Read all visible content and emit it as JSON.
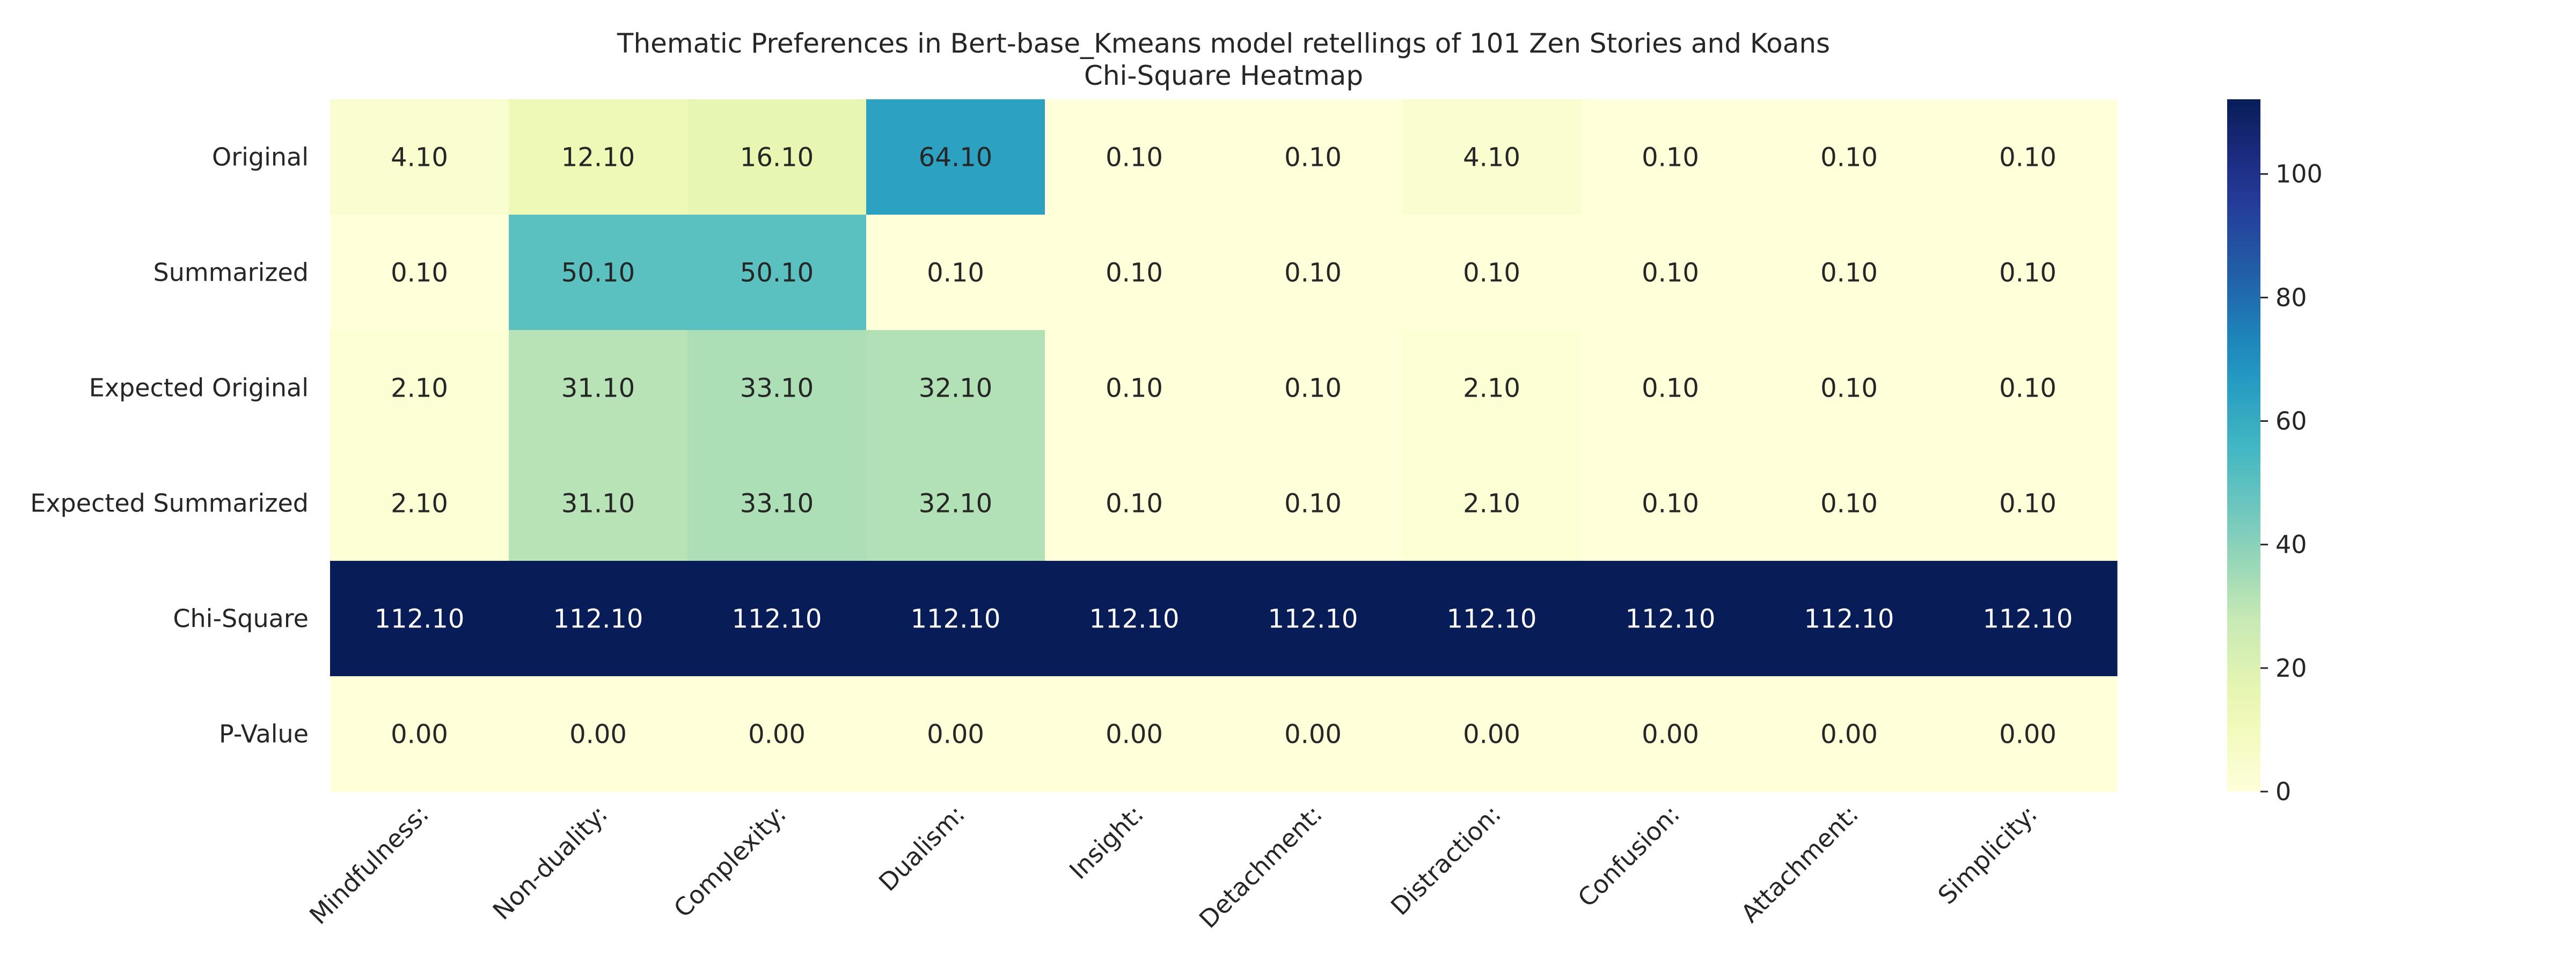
{
  "chart_data": {
    "type": "heatmap",
    "title": "Thematic Preferences in Bert-base_Kmeans model retellings of 101 Zen Stories and Koans",
    "subtitle": "Chi-Square Heatmap",
    "columns": [
      "Mindfulness:",
      "Non-duality:",
      "Complexity:",
      "Dualism:",
      "Insight:",
      "Detachment:",
      "Distraction:",
      "Confusion:",
      "Attachment:",
      "Simplicity:"
    ],
    "rows": [
      {
        "label": "Original",
        "values": [
          4.1,
          12.1,
          16.1,
          64.1,
          0.1,
          0.1,
          4.1,
          0.1,
          0.1,
          0.1
        ],
        "text": [
          "4.10",
          "12.10",
          "16.10",
          "64.10",
          "0.10",
          "0.10",
          "4.10",
          "0.10",
          "0.10",
          "0.10"
        ]
      },
      {
        "label": "Summarized",
        "values": [
          0.1,
          50.1,
          50.1,
          0.1,
          0.1,
          0.1,
          0.1,
          0.1,
          0.1,
          0.1
        ],
        "text": [
          "0.10",
          "50.10",
          "50.10",
          "0.10",
          "0.10",
          "0.10",
          "0.10",
          "0.10",
          "0.10",
          "0.10"
        ]
      },
      {
        "label": "Expected Original",
        "values": [
          2.1,
          31.1,
          33.1,
          32.1,
          0.1,
          0.1,
          2.1,
          0.1,
          0.1,
          0.1
        ],
        "text": [
          "2.10",
          "31.10",
          "33.10",
          "32.10",
          "0.10",
          "0.10",
          "2.10",
          "0.10",
          "0.10",
          "0.10"
        ]
      },
      {
        "label": "Expected Summarized",
        "values": [
          2.1,
          31.1,
          33.1,
          32.1,
          0.1,
          0.1,
          2.1,
          0.1,
          0.1,
          0.1
        ],
        "text": [
          "2.10",
          "31.10",
          "33.10",
          "32.10",
          "0.10",
          "0.10",
          "2.10",
          "0.10",
          "0.10",
          "0.10"
        ]
      },
      {
        "label": "Chi-Square",
        "values": [
          112.1,
          112.1,
          112.1,
          112.1,
          112.1,
          112.1,
          112.1,
          112.1,
          112.1,
          112.1
        ],
        "text": [
          "112.10",
          "112.10",
          "112.10",
          "112.10",
          "112.10",
          "112.10",
          "112.10",
          "112.10",
          "112.10",
          "112.10"
        ]
      },
      {
        "label": "P-Value",
        "values": [
          0.0,
          0.0,
          0.0,
          0.0,
          0.0,
          0.0,
          0.0,
          0.0,
          0.0,
          0.0
        ],
        "text": [
          "0.00",
          "0.00",
          "0.00",
          "0.00",
          "0.00",
          "0.00",
          "0.00",
          "0.00",
          "0.00",
          "0.00"
        ]
      }
    ],
    "colormap": "YlGnBu",
    "colorbar": {
      "range": [
        0,
        112.1
      ],
      "ticks": [
        0,
        20,
        40,
        60,
        80,
        100
      ],
      "tick_labels": [
        "0",
        "20",
        "40",
        "60",
        "80",
        "100"
      ],
      "placement": "right"
    },
    "grid": false
  }
}
